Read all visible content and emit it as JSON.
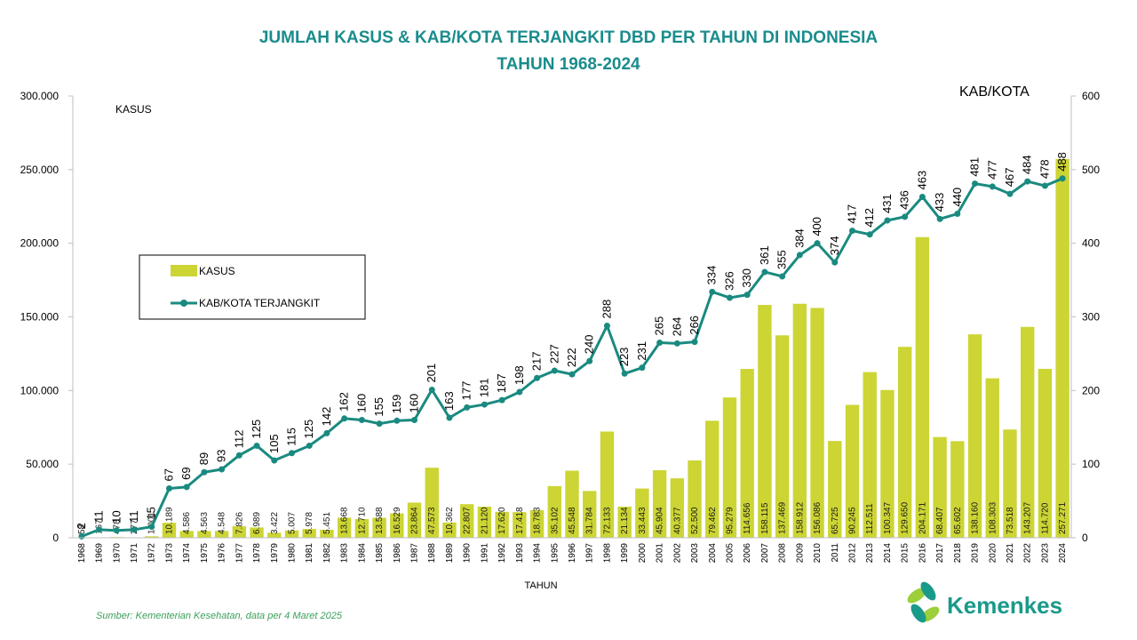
{
  "chart_data": {
    "type": "bar",
    "title": "JUMLAH KASUS & KAB/KOTA TERJANGKIT DBD PER TAHUN DI INDONESIA",
    "subtitle": "TAHUN 1968-2024",
    "xlabel": "TAHUN",
    "ylabel_left": "KASUS",
    "ylabel_right": "KAB/KOTA",
    "ylim_left": [
      0,
      300000
    ],
    "ylim_right": [
      0,
      600
    ],
    "yticks_left": [
      "0",
      "50.000",
      "100.000",
      "150.000",
      "200.000",
      "250.000",
      "300.000"
    ],
    "yticks_right": [
      "0",
      "100",
      "200",
      "300",
      "400",
      "500",
      "600"
    ],
    "grid": false,
    "legend_placement": "center-left",
    "categories": [
      "1968",
      "1969",
      "1970",
      "1971",
      "1972",
      "1973",
      "1974",
      "1975",
      "1976",
      "1977",
      "1978",
      "1979",
      "1980",
      "1981",
      "1982",
      "1983",
      "1984",
      "1985",
      "1986",
      "1987",
      "1988",
      "1989",
      "1990",
      "1991",
      "1992",
      "1993",
      "1994",
      "1995",
      "1996",
      "1997",
      "1998",
      "1999",
      "2000",
      "2001",
      "2002",
      "2003",
      "2004",
      "2005",
      "2006",
      "2007",
      "2008",
      "2009",
      "2010",
      "2011",
      "2012",
      "2013",
      "2014",
      "2015",
      "2016",
      "2017",
      "2018",
      "2019",
      "2020",
      "2021",
      "2022",
      "2023",
      "2024"
    ],
    "series": [
      {
        "name": "KASUS",
        "type": "bar",
        "axis": "left",
        "color": "#ccd534",
        "values": [
          58,
          167,
          478,
          277,
          1001,
          10189,
          4586,
          4563,
          4548,
          7826,
          6989,
          3422,
          5007,
          5978,
          5451,
          13668,
          12710,
          13588,
          16529,
          23864,
          47573,
          10362,
          22807,
          21120,
          17620,
          17418,
          18783,
          35102,
          45548,
          31784,
          72133,
          21134,
          33443,
          45904,
          40377,
          52500,
          79462,
          95279,
          114656,
          158115,
          137469,
          158912,
          156086,
          65725,
          90245,
          112511,
          100347,
          129650,
          204171,
          68407,
          65602,
          138160,
          108303,
          73518,
          143207,
          114720,
          257271
        ],
        "labels": [
          "58",
          "167",
          "478",
          "277",
          "1.001",
          "10.189",
          "4.586",
          "4.563",
          "4.548",
          "7.826",
          "6.989",
          "3.422",
          "5.007",
          "5.978",
          "5.451",
          "13.668",
          "12.710",
          "13.588",
          "16.529",
          "23.864",
          "47.573",
          "10.362",
          "22.807",
          "21.120",
          "17.620",
          "17.418",
          "18.783",
          "35.102",
          "45.548",
          "31.784",
          "72.133",
          "21.134",
          "33.443",
          "45.904",
          "40.377",
          "52.500",
          "79.462",
          "95.279",
          "114.656",
          "158.115",
          "137.469",
          "158.912",
          "156.086",
          "65.725",
          "90.245",
          "112.511",
          "100.347",
          "129.650",
          "204.171",
          "68.407",
          "65.602",
          "138.160",
          "108.303",
          "73.518",
          "143.207",
          "114.720",
          "257.271"
        ]
      },
      {
        "name": "KAB/KOTA TERJANGKIT",
        "type": "line",
        "axis": "right",
        "color": "#1a8a80",
        "values": [
          2,
          11,
          10,
          11,
          15,
          67,
          69,
          89,
          93,
          112,
          125,
          105,
          115,
          125,
          142,
          162,
          160,
          155,
          159,
          160,
          201,
          163,
          177,
          181,
          187,
          198,
          217,
          227,
          222,
          240,
          288,
          223,
          231,
          265,
          264,
          266,
          334,
          326,
          330,
          361,
          355,
          384,
          400,
          374,
          417,
          412,
          431,
          436,
          463,
          433,
          440,
          481,
          477,
          467,
          484,
          478,
          488
        ]
      }
    ]
  },
  "source": "Sumber: Kementerian Kesehatan, data per 4 Maret 2025",
  "logo": {
    "text": "Kemenkes",
    "icon": "kemenkes-logo-icon"
  },
  "colors": {
    "title": "#1a8c8c",
    "bar": "#ccd534",
    "line": "#1a8a80",
    "source": "#3aa05a"
  }
}
